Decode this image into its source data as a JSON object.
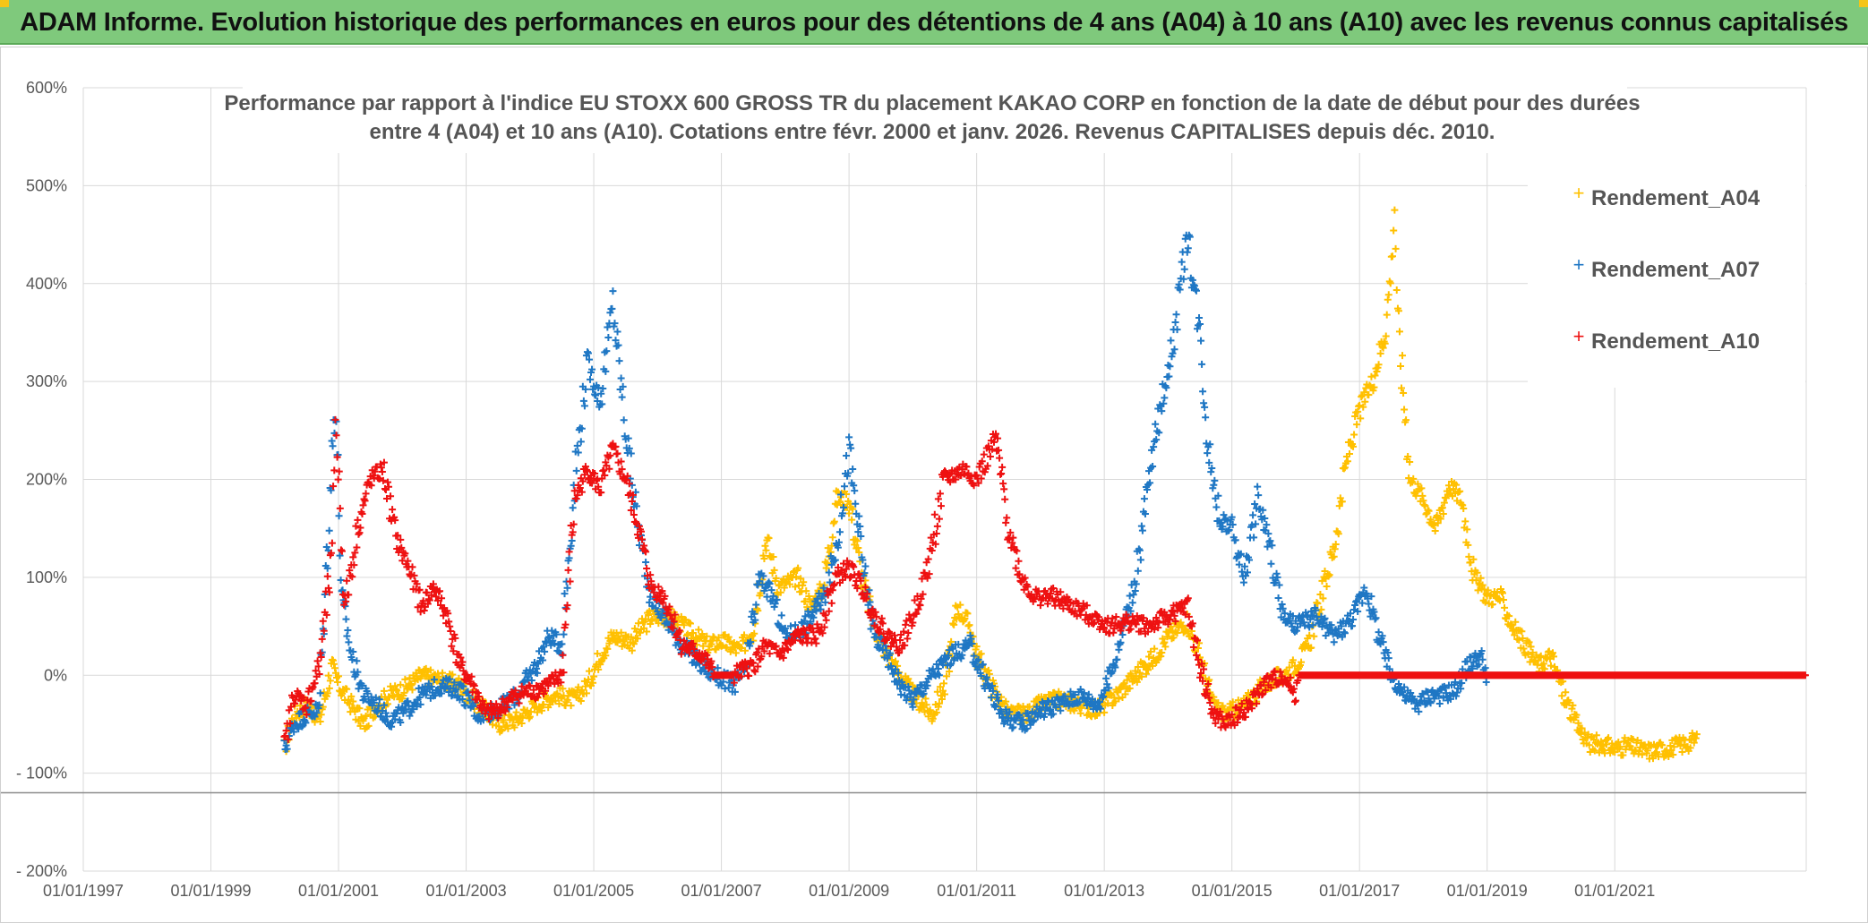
{
  "header": {
    "title": "ADAM Informe. Evolution historique des performances en euros pour des détentions de 4 ans (A04) à 10 ans (A10) avec les revenus connus capitalisés"
  },
  "colors": {
    "header_bg": "#7fc97c",
    "A04": "#ffc000",
    "A07": "#1f77c4",
    "A10": "#ee1111",
    "grid": "#d9d9d9"
  },
  "chart_data": {
    "type": "scatter",
    "title_line1": "Performance par rapport à l'indice EU STOXX 600 GROSS TR  du placement KAKAO CORP en fonction de la date de début pour des durées",
    "title_line2": "entre 4 (A04) et 10 ans (A10). Cotations entre févr. 2000 et janv. 2026. Revenus CAPITALISES depuis déc. 2010.",
    "xlabel": "",
    "ylabel": "",
    "x_range": [
      1997.0,
      2024.0
    ],
    "y_range": [
      -200,
      600
    ],
    "y_ticks": [
      {
        "v": 600,
        "label": "600%"
      },
      {
        "v": 500,
        "label": "500%"
      },
      {
        "v": 400,
        "label": "400%"
      },
      {
        "v": 300,
        "label": "300%"
      },
      {
        "v": 200,
        "label": "200%"
      },
      {
        "v": 100,
        "label": "100%"
      },
      {
        "v": 0,
        "label": "0%"
      },
      {
        "v": -100,
        "label": "- 100%"
      },
      {
        "v": -200,
        "label": "- 200%"
      }
    ],
    "x_ticks": [
      {
        "v": 1997,
        "label": "01/01/1997"
      },
      {
        "v": 1999,
        "label": "01/01/1999"
      },
      {
        "v": 2001,
        "label": "01/01/2001"
      },
      {
        "v": 2003,
        "label": "01/01/2003"
      },
      {
        "v": 2005,
        "label": "01/01/2005"
      },
      {
        "v": 2007,
        "label": "01/01/2007"
      },
      {
        "v": 2009,
        "label": "01/01/2009"
      },
      {
        "v": 2011,
        "label": "01/01/2011"
      },
      {
        "v": 2013,
        "label": "01/01/2013"
      },
      {
        "v": 2015,
        "label": "01/01/2015"
      },
      {
        "v": 2017,
        "label": "01/01/2017"
      },
      {
        "v": 2019,
        "label": "01/01/2019"
      },
      {
        "v": 2021,
        "label": "01/01/2021"
      }
    ],
    "reference_line": -120,
    "legend": [
      "Rendement_A04",
      "Rendement_A07",
      "Rendement_A10"
    ],
    "legend_position": "top-right",
    "series": [
      {
        "name": "Rendement_A04",
        "color": "#ffc000",
        "points": [
          [
            2000.15,
            -75
          ],
          [
            2000.3,
            -40
          ],
          [
            2000.5,
            -30
          ],
          [
            2000.7,
            -45
          ],
          [
            2000.9,
            10
          ],
          [
            2001.0,
            -10
          ],
          [
            2001.2,
            -30
          ],
          [
            2001.4,
            -50
          ],
          [
            2001.6,
            -30
          ],
          [
            2001.8,
            -20
          ],
          [
            2002.0,
            -15
          ],
          [
            2002.3,
            0
          ],
          [
            2002.6,
            -5
          ],
          [
            2002.9,
            -10
          ],
          [
            2003.2,
            -30
          ],
          [
            2003.5,
            -50
          ],
          [
            2003.8,
            -45
          ],
          [
            2004.1,
            -30
          ],
          [
            2004.4,
            -20
          ],
          [
            2004.7,
            -25
          ],
          [
            2004.9,
            -10
          ],
          [
            2005.1,
            20
          ],
          [
            2005.3,
            40
          ],
          [
            2005.6,
            35
          ],
          [
            2005.9,
            60
          ],
          [
            2006.2,
            60
          ],
          [
            2006.5,
            45
          ],
          [
            2006.8,
            30
          ],
          [
            2007.0,
            35
          ],
          [
            2007.3,
            25
          ],
          [
            2007.5,
            50
          ],
          [
            2007.7,
            140
          ],
          [
            2007.9,
            90
          ],
          [
            2008.2,
            100
          ],
          [
            2008.4,
            70
          ],
          [
            2008.6,
            90
          ],
          [
            2008.8,
            180
          ],
          [
            2009.0,
            180
          ],
          [
            2009.2,
            100
          ],
          [
            2009.4,
            50
          ],
          [
            2009.6,
            20
          ],
          [
            2009.8,
            0
          ],
          [
            2010.0,
            -20
          ],
          [
            2010.3,
            -40
          ],
          [
            2010.5,
            -10
          ],
          [
            2010.7,
            70
          ],
          [
            2010.9,
            50
          ],
          [
            2011.0,
            20
          ],
          [
            2011.3,
            -20
          ],
          [
            2011.5,
            -40
          ],
          [
            2011.8,
            -40
          ],
          [
            2012.0,
            -30
          ],
          [
            2012.3,
            -25
          ],
          [
            2012.6,
            -30
          ],
          [
            2012.9,
            -35
          ],
          [
            2013.2,
            -20
          ],
          [
            2013.5,
            0
          ],
          [
            2013.8,
            20
          ],
          [
            2014.0,
            40
          ],
          [
            2014.3,
            55
          ],
          [
            2014.5,
            20
          ],
          [
            2014.7,
            -30
          ],
          [
            2014.9,
            -40
          ],
          [
            2015.2,
            -30
          ],
          [
            2015.5,
            -10
          ],
          [
            2015.8,
            0
          ],
          [
            2016.0,
            10
          ],
          [
            2016.2,
            30
          ],
          [
            2016.4,
            80
          ],
          [
            2016.6,
            130
          ],
          [
            2016.8,
            220
          ],
          [
            2017.0,
            270
          ],
          [
            2017.2,
            300
          ],
          [
            2017.4,
            350
          ],
          [
            2017.5,
            420
          ],
          [
            2017.55,
            480
          ],
          [
            2017.6,
            360
          ],
          [
            2017.8,
            200
          ],
          [
            2018.0,
            180
          ],
          [
            2018.2,
            150
          ],
          [
            2018.4,
            195
          ],
          [
            2018.6,
            180
          ],
          [
            2018.8,
            100
          ],
          [
            2019.0,
            80
          ],
          [
            2019.2,
            80
          ],
          [
            2019.4,
            50
          ],
          [
            2019.6,
            30
          ],
          [
            2019.8,
            10
          ],
          [
            2020.0,
            20
          ],
          [
            2020.2,
            -20
          ],
          [
            2020.4,
            -50
          ],
          [
            2020.6,
            -70
          ],
          [
            2020.8,
            -70
          ],
          [
            2021.0,
            -75
          ],
          [
            2021.2,
            -72
          ],
          [
            2021.5,
            -78
          ],
          [
            2021.8,
            -75
          ],
          [
            2022.1,
            -70
          ],
          [
            2022.3,
            -65
          ]
        ]
      },
      {
        "name": "Rendement_A07",
        "color": "#1f77c4",
        "points": [
          [
            2000.15,
            -75
          ],
          [
            2000.3,
            -50
          ],
          [
            2000.5,
            -40
          ],
          [
            2000.7,
            -35
          ],
          [
            2000.8,
            100
          ],
          [
            2000.95,
            290
          ],
          [
            2001.05,
            80
          ],
          [
            2001.2,
            20
          ],
          [
            2001.4,
            -20
          ],
          [
            2001.6,
            -30
          ],
          [
            2001.8,
            -45
          ],
          [
            2002.0,
            -40
          ],
          [
            2002.3,
            -20
          ],
          [
            2002.6,
            -10
          ],
          [
            2002.9,
            -15
          ],
          [
            2003.2,
            -40
          ],
          [
            2003.5,
            -35
          ],
          [
            2003.8,
            -20
          ],
          [
            2004.1,
            10
          ],
          [
            2004.3,
            40
          ],
          [
            2004.5,
            30
          ],
          [
            2004.7,
            200
          ],
          [
            2004.9,
            320
          ],
          [
            2005.1,
            280
          ],
          [
            2005.3,
            380
          ],
          [
            2005.5,
            250
          ],
          [
            2005.7,
            150
          ],
          [
            2005.9,
            80
          ],
          [
            2006.1,
            60
          ],
          [
            2006.4,
            30
          ],
          [
            2006.7,
            10
          ],
          [
            2006.9,
            0
          ],
          [
            2007.2,
            -10
          ],
          [
            2007.4,
            10
          ],
          [
            2007.6,
            100
          ],
          [
            2007.8,
            80
          ],
          [
            2008.0,
            40
          ],
          [
            2008.3,
            50
          ],
          [
            2008.6,
            80
          ],
          [
            2008.8,
            130
          ],
          [
            2009.0,
            230
          ],
          [
            2009.2,
            120
          ],
          [
            2009.4,
            40
          ],
          [
            2009.6,
            20
          ],
          [
            2009.8,
            -10
          ],
          [
            2010.0,
            -25
          ],
          [
            2010.3,
            0
          ],
          [
            2010.6,
            20
          ],
          [
            2010.9,
            30
          ],
          [
            2011.1,
            0
          ],
          [
            2011.4,
            -40
          ],
          [
            2011.7,
            -50
          ],
          [
            2012.0,
            -35
          ],
          [
            2012.3,
            -30
          ],
          [
            2012.6,
            -20
          ],
          [
            2012.9,
            -30
          ],
          [
            2013.1,
            0
          ],
          [
            2013.3,
            50
          ],
          [
            2013.5,
            100
          ],
          [
            2013.7,
            200
          ],
          [
            2013.9,
            280
          ],
          [
            2014.1,
            350
          ],
          [
            2014.3,
            450
          ],
          [
            2014.5,
            350
          ],
          [
            2014.6,
            250
          ],
          [
            2014.8,
            160
          ],
          [
            2015.0,
            150
          ],
          [
            2015.2,
            100
          ],
          [
            2015.4,
            180
          ],
          [
            2015.6,
            130
          ],
          [
            2015.8,
            60
          ],
          [
            2016.0,
            50
          ],
          [
            2016.3,
            60
          ],
          [
            2016.6,
            40
          ],
          [
            2016.9,
            60
          ],
          [
            2017.1,
            90
          ],
          [
            2017.3,
            40
          ],
          [
            2017.5,
            0
          ],
          [
            2017.7,
            -20
          ],
          [
            2017.9,
            -30
          ],
          [
            2018.1,
            -20
          ],
          [
            2018.3,
            -20
          ],
          [
            2018.5,
            -15
          ],
          [
            2018.7,
            10
          ],
          [
            2018.9,
            20
          ],
          [
            2019.0,
            -10
          ]
        ]
      },
      {
        "name": "Rendement_A10",
        "color": "#ee1111",
        "points": [
          [
            2000.15,
            -75
          ],
          [
            2000.3,
            -20
          ],
          [
            2000.5,
            -30
          ],
          [
            2000.7,
            10
          ],
          [
            2000.9,
            120
          ],
          [
            2000.95,
            270
          ],
          [
            2001.1,
            70
          ],
          [
            2001.3,
            150
          ],
          [
            2001.5,
            200
          ],
          [
            2001.7,
            210
          ],
          [
            2001.9,
            140
          ],
          [
            2002.1,
            110
          ],
          [
            2002.3,
            70
          ],
          [
            2002.5,
            90
          ],
          [
            2002.7,
            60
          ],
          [
            2002.9,
            10
          ],
          [
            2003.1,
            -10
          ],
          [
            2003.3,
            -40
          ],
          [
            2003.5,
            -35
          ],
          [
            2003.8,
            -20
          ],
          [
            2004.1,
            -15
          ],
          [
            2004.3,
            -10
          ],
          [
            2004.5,
            0
          ],
          [
            2004.7,
            180
          ],
          [
            2004.9,
            210
          ],
          [
            2005.1,
            190
          ],
          [
            2005.3,
            230
          ],
          [
            2005.5,
            200
          ],
          [
            2005.7,
            150
          ],
          [
            2005.9,
            90
          ],
          [
            2006.1,
            80
          ],
          [
            2006.4,
            30
          ],
          [
            2006.7,
            20
          ],
          [
            2006.9,
            0
          ],
          [
            2007.2,
            0
          ],
          [
            2007.5,
            10
          ],
          [
            2007.7,
            30
          ],
          [
            2007.9,
            20
          ],
          [
            2008.2,
            40
          ],
          [
            2008.5,
            40
          ],
          [
            2008.8,
            100
          ],
          [
            2009.0,
            110
          ],
          [
            2009.2,
            90
          ],
          [
            2009.4,
            60
          ],
          [
            2009.6,
            40
          ],
          [
            2009.8,
            30
          ],
          [
            2010.0,
            60
          ],
          [
            2010.2,
            100
          ],
          [
            2010.5,
            200
          ],
          [
            2010.8,
            210
          ],
          [
            2011.0,
            200
          ],
          [
            2011.3,
            240
          ],
          [
            2011.5,
            150
          ],
          [
            2011.7,
            100
          ],
          [
            2011.9,
            80
          ],
          [
            2012.2,
            80
          ],
          [
            2012.5,
            70
          ],
          [
            2012.8,
            60
          ],
          [
            2013.1,
            50
          ],
          [
            2013.4,
            55
          ],
          [
            2013.7,
            50
          ],
          [
            2014.0,
            60
          ],
          [
            2014.3,
            70
          ],
          [
            2014.5,
            10
          ],
          [
            2014.7,
            -40
          ],
          [
            2014.9,
            -50
          ],
          [
            2015.1,
            -40
          ],
          [
            2015.3,
            -30
          ],
          [
            2015.5,
            -10
          ],
          [
            2015.8,
            0
          ],
          [
            2016.0,
            -20
          ],
          [
            2016.05,
            0
          ],
          [
            2024.0,
            0
          ]
        ]
      }
    ]
  }
}
